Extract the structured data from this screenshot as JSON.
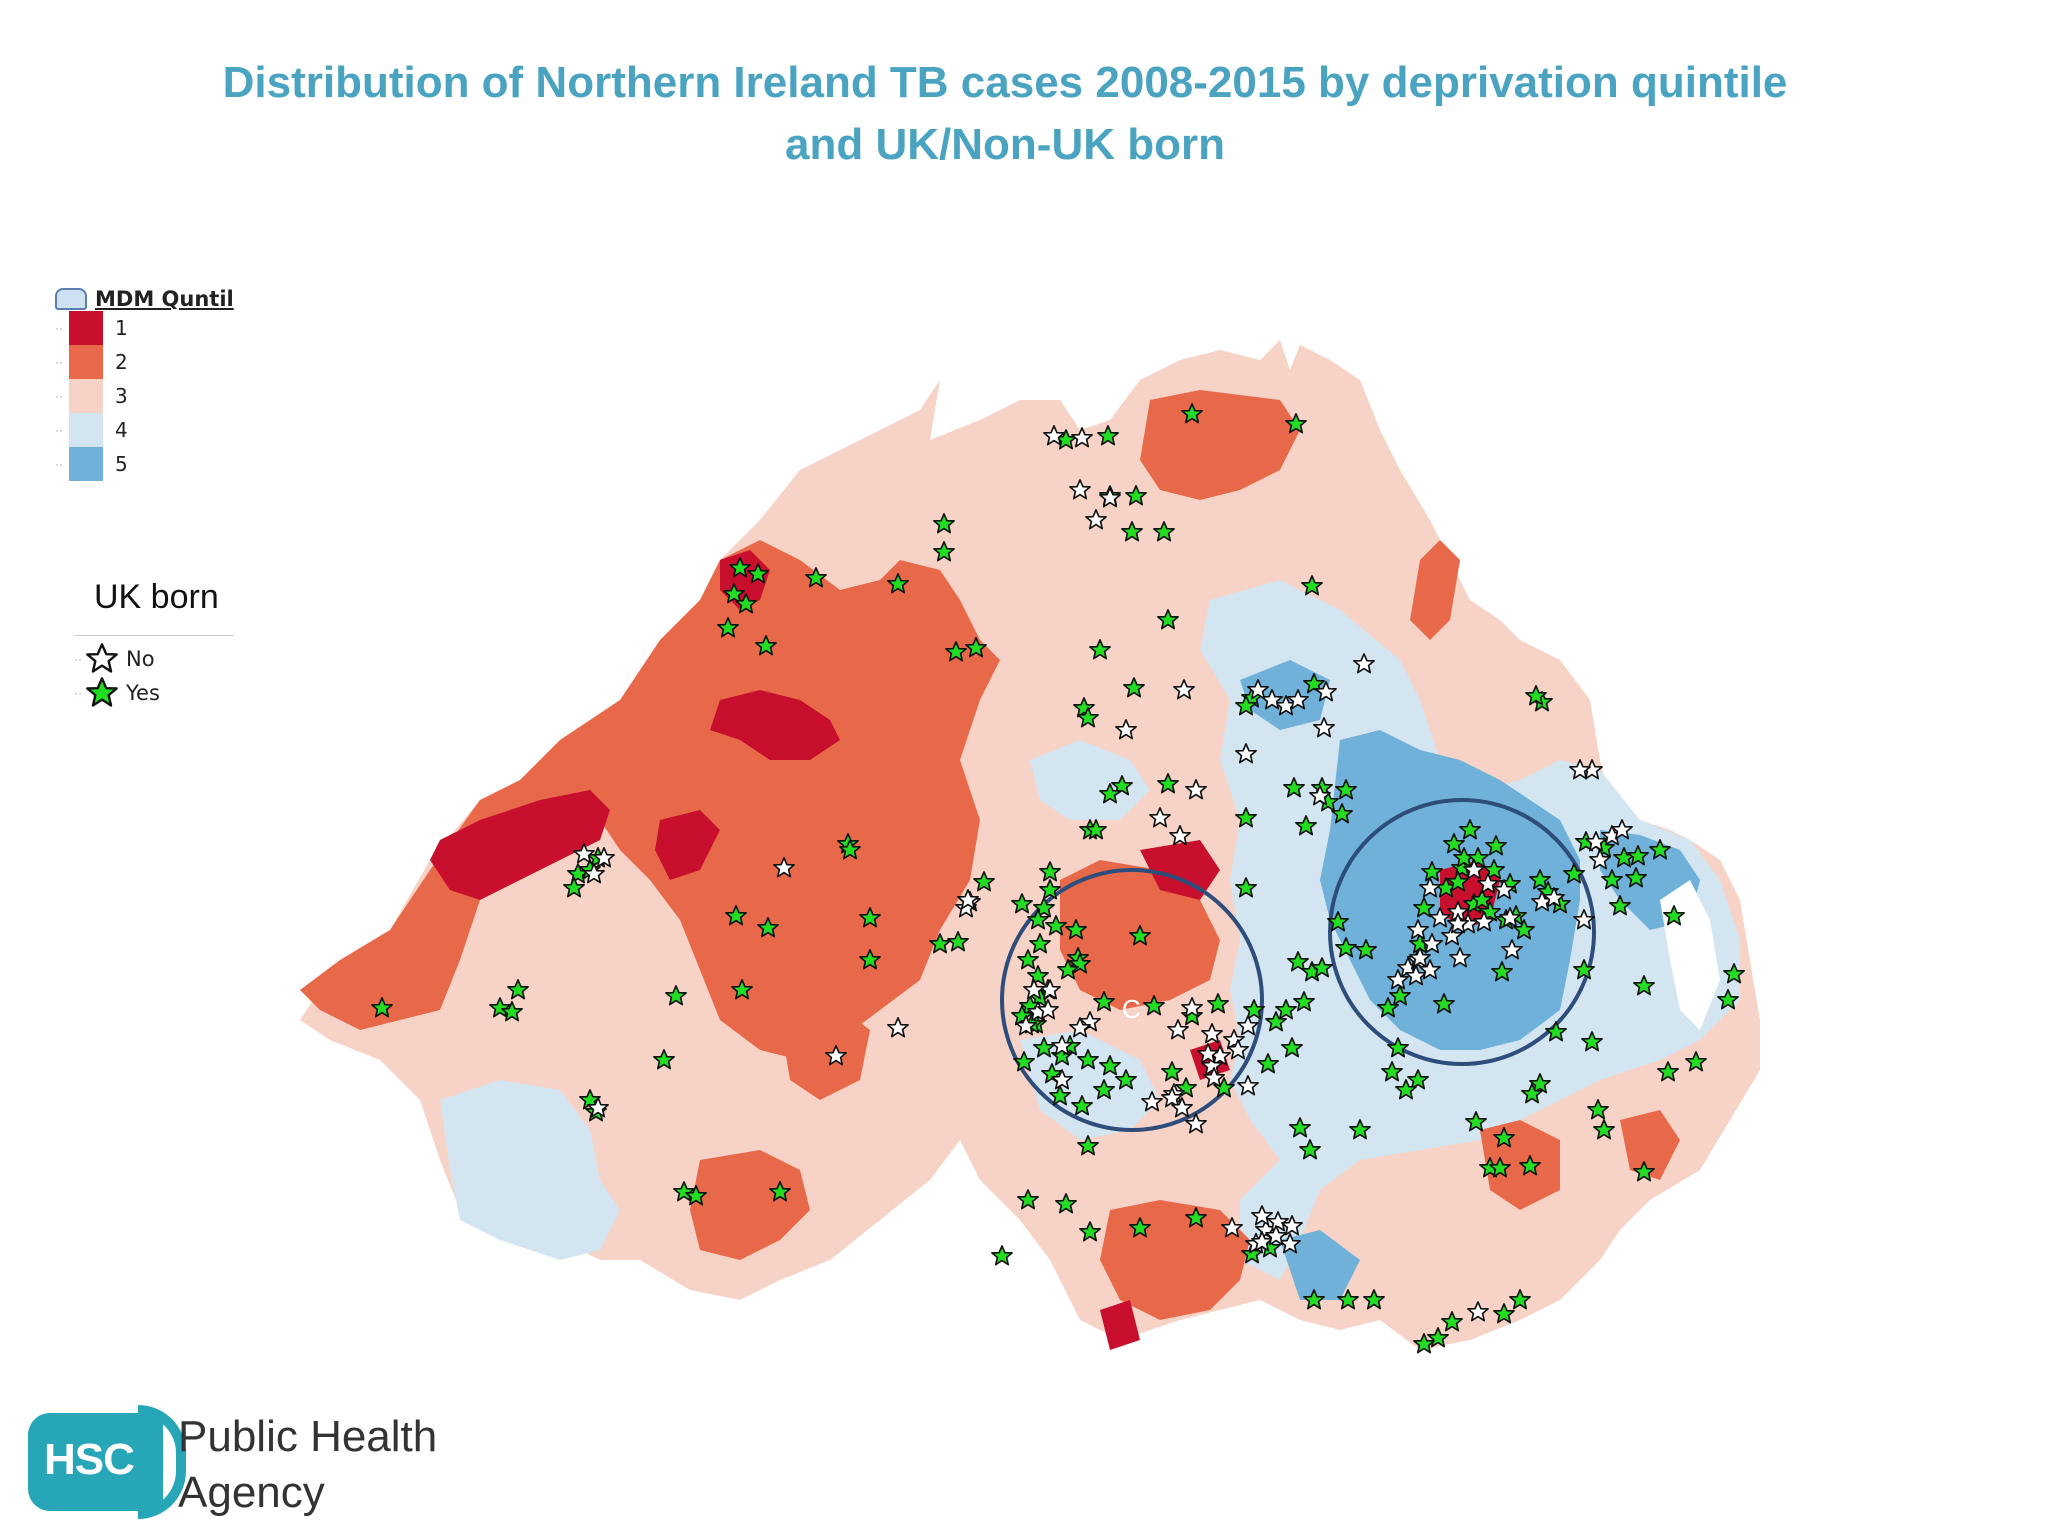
{
  "title": {
    "line1": "Distribution of Northern Ireland TB cases 2008-2015 by deprivation quintile",
    "line2": "and UK/Non-UK born"
  },
  "legend_quintile": {
    "heading": "MDM Quntil",
    "items": [
      {
        "label": "1",
        "color": "#c8102e"
      },
      {
        "label": "2",
        "color": "#e8694a"
      },
      {
        "label": "3",
        "color": "#f7d2c6"
      },
      {
        "label": "4",
        "color": "#d3e5f0"
      },
      {
        "label": "5",
        "color": "#6fb1d8"
      }
    ]
  },
  "legend_born": {
    "heading": "UK born",
    "items": [
      {
        "label": "No",
        "color": "#ffffff"
      },
      {
        "label": "Yes",
        "color": "#22dd22"
      }
    ]
  },
  "map_label": "C",
  "logo": {
    "mark": "HSC",
    "line1": "Public Health",
    "line2": "Agency"
  }
}
